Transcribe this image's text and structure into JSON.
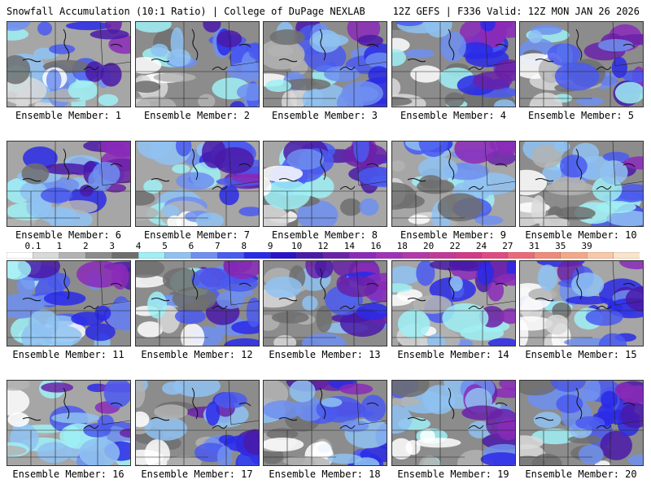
{
  "header": {
    "left": "Snowfall Accumulation (10:1 Ratio) | College of DuPage NEXLAB",
    "right": "12Z GEFS | F336 Valid: 12Z MON JAN 26 2026"
  },
  "caption_prefix": "Ensemble Member: ",
  "members": [
    {
      "label": "Ensemble Member: 1",
      "number": 1
    },
    {
      "label": "Ensemble Member: 2",
      "number": 2
    },
    {
      "label": "Ensemble Member: 3",
      "number": 3
    },
    {
      "label": "Ensemble Member: 4",
      "number": 4
    },
    {
      "label": "Ensemble Member: 5",
      "number": 5
    },
    {
      "label": "Ensemble Member: 6",
      "number": 6
    },
    {
      "label": "Ensemble Member: 7",
      "number": 7
    },
    {
      "label": "Ensemble Member: 8",
      "number": 8
    },
    {
      "label": "Ensemble Member: 9",
      "number": 9
    },
    {
      "label": "Ensemble Member: 10",
      "number": 10
    },
    {
      "label": "Ensemble Member: 11",
      "number": 11
    },
    {
      "label": "Ensemble Member: 12",
      "number": 12
    },
    {
      "label": "Ensemble Member: 13",
      "number": 13
    },
    {
      "label": "Ensemble Member: 14",
      "number": 14
    },
    {
      "label": "Ensemble Member: 15",
      "number": 15
    },
    {
      "label": "Ensemble Member: 16",
      "number": 16
    },
    {
      "label": "Ensemble Member: 17",
      "number": 17
    },
    {
      "label": "Ensemble Member: 18",
      "number": 18
    },
    {
      "label": "Ensemble Member: 19",
      "number": 19
    },
    {
      "label": "Ensemble Member: 20",
      "number": 20
    }
  ],
  "colorbar": {
    "labels": [
      "0.1",
      "1",
      "2",
      "3",
      "4",
      "5",
      "6",
      "7",
      "8",
      "9",
      "10",
      "12",
      "14",
      "16",
      "18",
      "20",
      "22",
      "24",
      "27",
      "31",
      "35",
      "39"
    ],
    "colors": [
      "#ffffff",
      "#d9d9d9",
      "#b3b3b3",
      "#8c8c8c",
      "#6e6e6e",
      "#9ff0f5",
      "#8fc2f2",
      "#6f8ff0",
      "#4a5bf0",
      "#2a2ae8",
      "#2a12c8",
      "#4a1aa8",
      "#6a22a8",
      "#8a2ab8",
      "#a032b8",
      "#b23aa8",
      "#c23a98",
      "#d23a88",
      "#e04a80",
      "#ea6a7a",
      "#f08a7a",
      "#f4a888",
      "#f8c8a8",
      "#fbe4cc"
    ]
  }
}
